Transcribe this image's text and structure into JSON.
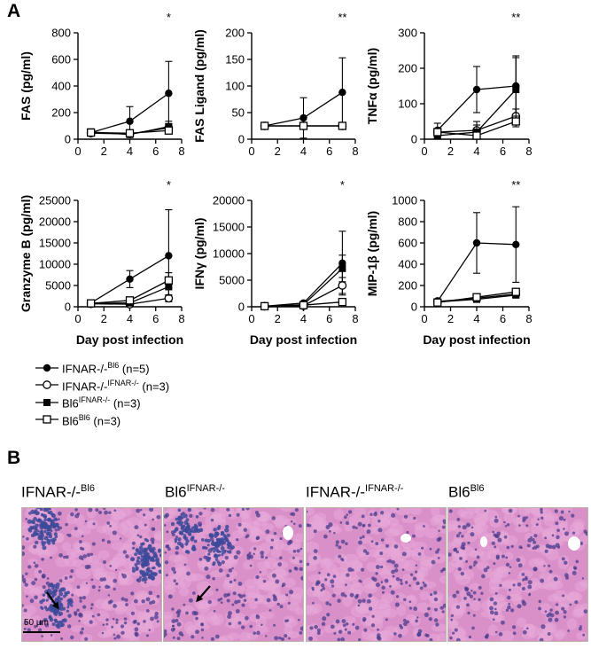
{
  "panels": {
    "a": "A",
    "b": "B"
  },
  "chart_data": [
    {
      "type": "line",
      "ylabel": "FAS (pg/ml)",
      "xlabel": "",
      "significance": "*",
      "ylim": [
        0,
        800
      ],
      "yticks": [
        0,
        200,
        400,
        600,
        800
      ],
      "xlim": [
        0,
        8
      ],
      "xticks": [
        0,
        2,
        4,
        6,
        8
      ],
      "x": [
        1,
        4,
        7
      ],
      "series": [
        {
          "name": "IFNAR-/-Bl6 (n=5)",
          "marker": "filled-circle",
          "values": [
            50,
            135,
            345
          ],
          "err": [
            20,
            110,
            240
          ]
        },
        {
          "name": "IFNAR-/-IFNAR-/- (n=3)",
          "marker": "open-circle",
          "values": [
            45,
            40,
            85
          ],
          "err": [
            10,
            15,
            30
          ]
        },
        {
          "name": "Bl6IFNAR-/- (n=3)",
          "marker": "filled-square",
          "values": [
            55,
            35,
            95
          ],
          "err": [
            15,
            20,
            40
          ]
        },
        {
          "name": "Bl6Bl6 (n=3)",
          "marker": "open-square",
          "values": [
            50,
            45,
            65
          ],
          "err": [
            10,
            10,
            20
          ]
        }
      ]
    },
    {
      "type": "line",
      "ylabel": "FAS Ligand (pg/ml)",
      "xlabel": "",
      "significance": "**",
      "ylim": [
        0,
        200
      ],
      "yticks": [
        0,
        50,
        100,
        150,
        200
      ],
      "xlim": [
        0,
        8
      ],
      "xticks": [
        0,
        2,
        4,
        6,
        8
      ],
      "x": [
        1,
        4,
        7
      ],
      "series": [
        {
          "name": "IFNAR-/-Bl6 (n=5)",
          "marker": "filled-circle",
          "values": [
            25,
            40,
            88
          ],
          "err": [
            0,
            38,
            65
          ]
        },
        {
          "name": "IFNAR-/-IFNAR-/- (n=3)",
          "marker": "open-circle",
          "values": [
            25,
            25,
            25
          ],
          "err": [
            0,
            0,
            0
          ]
        },
        {
          "name": "Bl6IFNAR-/- (n=3)",
          "marker": "filled-square",
          "values": [
            25,
            25,
            25
          ],
          "err": [
            0,
            0,
            0
          ]
        },
        {
          "name": "Bl6Bl6 (n=3)",
          "marker": "open-square",
          "values": [
            25,
            25,
            25
          ],
          "err": [
            0,
            0,
            0
          ]
        }
      ]
    },
    {
      "type": "line",
      "ylabel": "TNFα (pg/ml)",
      "xlabel": "",
      "significance": "**",
      "ylim": [
        0,
        300
      ],
      "yticks": [
        0,
        100,
        200,
        300
      ],
      "xlim": [
        0,
        8
      ],
      "xticks": [
        0,
        2,
        4,
        6,
        8
      ],
      "x": [
        1,
        4,
        7
      ],
      "series": [
        {
          "name": "IFNAR-/-Bl6 (n=5)",
          "marker": "filled-circle",
          "values": [
            25,
            140,
            150
          ],
          "err": [
            20,
            65,
            85
          ]
        },
        {
          "name": "IFNAR-/-IFNAR-/- (n=3)",
          "marker": "open-circle",
          "values": [
            20,
            25,
            65
          ],
          "err": [
            10,
            15,
            20
          ]
        },
        {
          "name": "Bl6IFNAR-/- (n=3)",
          "marker": "filled-square",
          "values": [
            10,
            20,
            140
          ],
          "err": [
            8,
            30,
            90
          ]
        },
        {
          "name": "Bl6Bl6 (n=3)",
          "marker": "open-square",
          "values": [
            20,
            10,
            50
          ],
          "err": [
            10,
            8,
            15
          ]
        }
      ]
    },
    {
      "type": "line",
      "ylabel": "Granzyme B (pg/ml)",
      "xlabel": "Day post infection",
      "significance": "*",
      "ylim": [
        0,
        25000
      ],
      "yticks": [
        0,
        5000,
        10000,
        15000,
        20000,
        25000
      ],
      "xlim": [
        0,
        8
      ],
      "xticks": [
        0,
        2,
        4,
        6,
        8
      ],
      "x": [
        1,
        4,
        7
      ],
      "series": [
        {
          "name": "IFNAR-/-Bl6 (n=5)",
          "marker": "filled-circle",
          "values": [
            900,
            6500,
            12000
          ],
          "err": [
            200,
            2000,
            10800
          ]
        },
        {
          "name": "IFNAR-/-IFNAR-/- (n=3)",
          "marker": "open-circle",
          "values": [
            700,
            600,
            2000
          ],
          "err": [
            200,
            200,
            800
          ]
        },
        {
          "name": "Bl6IFNAR-/- (n=3)",
          "marker": "filled-square",
          "values": [
            800,
            900,
            4700
          ],
          "err": [
            200,
            400,
            2000
          ]
        },
        {
          "name": "Bl6Bl6 (n=3)",
          "marker": "open-square",
          "values": [
            800,
            1500,
            6200
          ],
          "err": [
            200,
            400,
            1800
          ]
        }
      ]
    },
    {
      "type": "line",
      "ylabel": "IFNγ (pg/ml)",
      "xlabel": "Day post infection",
      "significance": "*",
      "ylim": [
        0,
        20000
      ],
      "yticks": [
        0,
        5000,
        10000,
        15000,
        20000
      ],
      "xlim": [
        0,
        8
      ],
      "xticks": [
        0,
        2,
        4,
        6,
        8
      ],
      "x": [
        1,
        4,
        7
      ],
      "series": [
        {
          "name": "IFNAR-/-Bl6 (n=5)",
          "marker": "filled-circle",
          "values": [
            100,
            700,
            8200
          ],
          "err": [
            50,
            300,
            6000
          ]
        },
        {
          "name": "IFNAR-/-IFNAR-/- (n=3)",
          "marker": "open-circle",
          "values": [
            100,
            200,
            4000
          ],
          "err": [
            50,
            100,
            1500
          ]
        },
        {
          "name": "Bl6IFNAR-/- (n=3)",
          "marker": "filled-square",
          "values": [
            100,
            400,
            7200
          ],
          "err": [
            50,
            200,
            2500
          ]
        },
        {
          "name": "Bl6Bl6 (n=3)",
          "marker": "open-square",
          "values": [
            100,
            300,
            900
          ],
          "err": [
            50,
            100,
            300
          ]
        }
      ]
    },
    {
      "type": "line",
      "ylabel": "MIP-1β (pg/ml)",
      "xlabel": "Day post infection",
      "significance": "**",
      "ylim": [
        0,
        1000
      ],
      "yticks": [
        0,
        200,
        400,
        600,
        800,
        1000
      ],
      "xlim": [
        0,
        8
      ],
      "xticks": [
        0,
        2,
        4,
        6,
        8
      ],
      "x": [
        1,
        4,
        7
      ],
      "series": [
        {
          "name": "IFNAR-/-Bl6 (n=5)",
          "marker": "filled-circle",
          "values": [
            50,
            600,
            585
          ],
          "err": [
            20,
            285,
            355
          ]
        },
        {
          "name": "IFNAR-/-IFNAR-/- (n=3)",
          "marker": "open-circle",
          "values": [
            50,
            80,
            120
          ],
          "err": [
            15,
            20,
            25
          ]
        },
        {
          "name": "Bl6IFNAR-/- (n=3)",
          "marker": "filled-square",
          "values": [
            45,
            70,
            110
          ],
          "err": [
            15,
            20,
            25
          ]
        },
        {
          "name": "Bl6Bl6 (n=3)",
          "marker": "open-square",
          "values": [
            40,
            90,
            140
          ],
          "err": [
            15,
            20,
            25
          ]
        }
      ]
    }
  ],
  "legend": [
    {
      "marker": "filled-circle",
      "base": "IFNAR-/-",
      "sup": "Bl6",
      "suffix": " (n=5)"
    },
    {
      "marker": "open-circle",
      "base": "IFNAR-/-",
      "sup": "IFNAR-/-",
      "suffix": " (n=3)"
    },
    {
      "marker": "filled-square",
      "base": "Bl6",
      "sup": "IFNAR-/-",
      "suffix": " (n=3)"
    },
    {
      "marker": "open-square",
      "base": "Bl6",
      "sup": "Bl6",
      "suffix": " (n=3)"
    }
  ],
  "histology": [
    {
      "base": "IFNAR-/-",
      "sup": "Bl6",
      "arrow": true,
      "infiltrate": "heavy"
    },
    {
      "base": "Bl6",
      "sup": "IFNAR-/-",
      "arrow": true,
      "infiltrate": "moderate"
    },
    {
      "base": "IFNAR-/-",
      "sup": "IFNAR-/-",
      "arrow": false,
      "infiltrate": "none"
    },
    {
      "base": "Bl6",
      "sup": "Bl6",
      "arrow": false,
      "infiltrate": "none"
    }
  ],
  "scalebar": "50 μm",
  "colors": {
    "tissue_bg": "#d98fc8",
    "tissue_cell": "#e7a9d9",
    "nucleus": "#4a3e8f",
    "infiltrate": "#3d4a9a"
  }
}
